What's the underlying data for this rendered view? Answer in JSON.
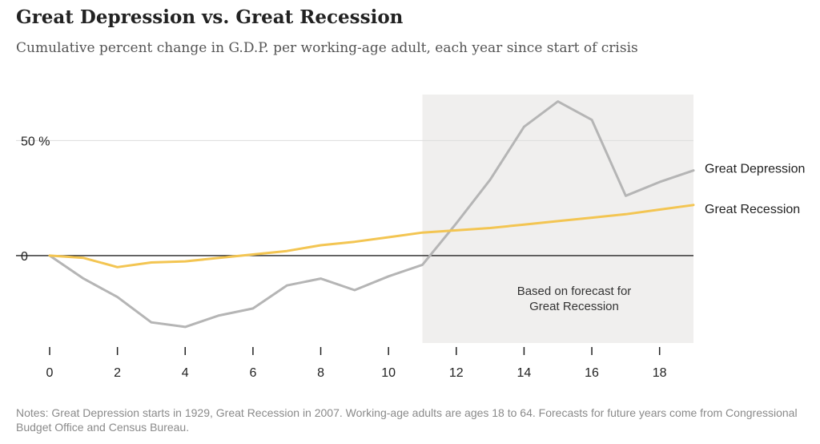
{
  "header": {
    "title": "Great Depression vs. Great Recession",
    "subtitle": "Cumulative percent change in G.D.P. per working-age adult, each year since start of crisis"
  },
  "chart_data": {
    "type": "line",
    "title": "Great Depression vs. Great Recession",
    "subtitle": "Cumulative percent change in G.D.P. per working-age adult, each year since start of crisis",
    "xlabel": "",
    "ylabel": "",
    "xlim": [
      0,
      19
    ],
    "ylim": [
      -38,
      70
    ],
    "x_ticks": [
      0,
      2,
      4,
      6,
      8,
      10,
      12,
      14,
      16,
      18
    ],
    "y_ticks": [
      {
        "value": 0,
        "label": "0"
      },
      {
        "value": 50,
        "label": "50 %"
      }
    ],
    "grid": "horizontal at y ticks",
    "x": [
      0,
      1,
      2,
      3,
      4,
      5,
      6,
      7,
      8,
      9,
      10,
      11,
      12,
      13,
      14,
      15,
      16,
      17,
      18,
      19
    ],
    "series": [
      {
        "name": "Great Depression",
        "color": "#b5b5b5",
        "values": [
          0,
          -10,
          -18,
          -29,
          -31,
          -26,
          -23,
          -13,
          -10,
          -15,
          -9,
          -4,
          14,
          33,
          56,
          67,
          59,
          26,
          32,
          37
        ]
      },
      {
        "name": "Great Recession",
        "color": "#f3c552",
        "values": [
          0,
          -1,
          -5,
          -3,
          -2.5,
          -1,
          0.5,
          2,
          4.5,
          6,
          8,
          10,
          11,
          12,
          13.5,
          15,
          16.5,
          18,
          20,
          22
        ]
      }
    ],
    "shaded_region": {
      "x_start": 11,
      "x_end": 19,
      "color": "#f0efee",
      "label": "Based on forecast for Great Recession"
    }
  },
  "annotation": {
    "line1": "Based on forecast for",
    "line2": "Great Recession"
  },
  "notes": "Notes: Great Depression starts in 1929, Great Recession in 2007. Working-age adults are ages 18 to 64. Forecasts for future years come from Congressional Budget Office and Census Bureau."
}
